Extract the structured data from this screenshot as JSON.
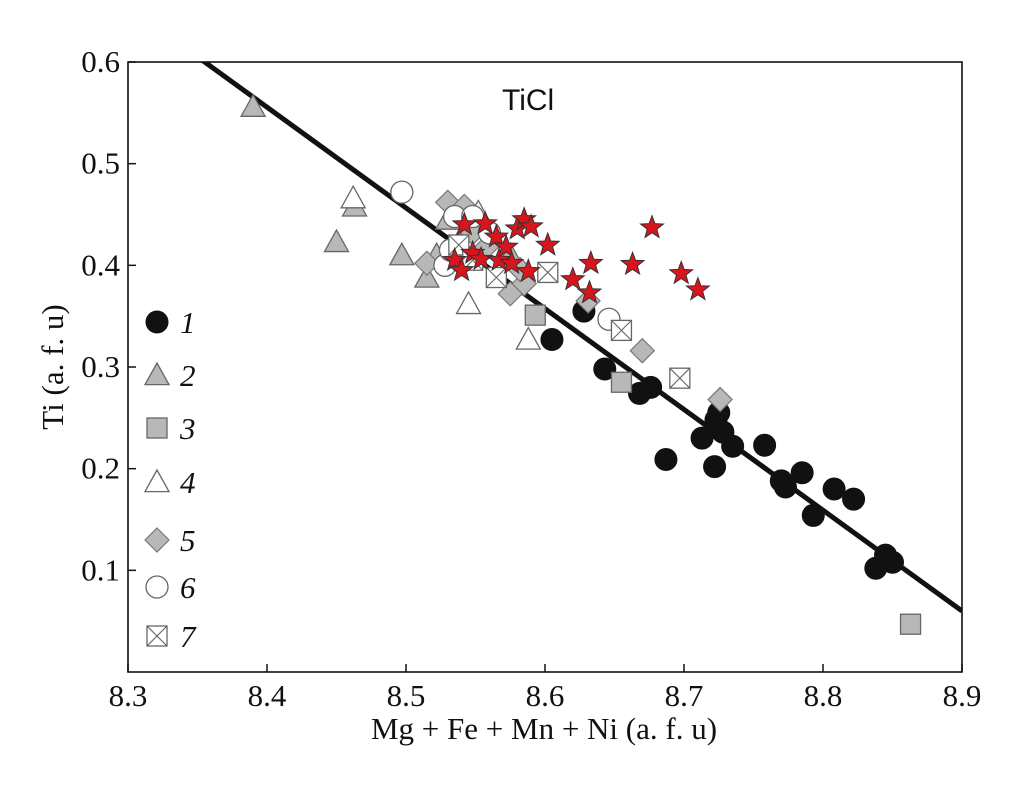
{
  "chart_data": {
    "type": "scatter",
    "annotation": "TiCl",
    "xlabel": "Mg + Fe + Mn + Ni (a. f. u)",
    "ylabel": "Ti (a. f. u)",
    "xlim": [
      8.3,
      8.9
    ],
    "ylim": [
      0.0,
      0.6
    ],
    "x_ticks": [
      8.3,
      8.4,
      8.5,
      8.6,
      8.7,
      8.8,
      8.9
    ],
    "x_tick_labels": [
      "8.3",
      "8.4",
      "8.5",
      "8.6",
      "8.7",
      "8.8",
      "8.9"
    ],
    "y_ticks": [
      0.1,
      0.2,
      0.3,
      0.4,
      0.5,
      0.6
    ],
    "y_tick_labels": [
      "0.1",
      "0.2",
      "0.3",
      "0.4",
      "0.5",
      "0.6"
    ],
    "grid": false,
    "legend_position": "left",
    "trend_line": {
      "x": [
        8.335,
        8.9
      ],
      "y": [
        0.62,
        0.06
      ]
    },
    "colors": {
      "star_fill": "#d8141c",
      "marker_gray": "#b8b8b8",
      "marker_black": "#111111"
    },
    "series": [
      {
        "name": "1",
        "marker": "filled-circle",
        "points": [
          [
            8.605,
            0.327
          ],
          [
            8.628,
            0.355
          ],
          [
            8.643,
            0.298
          ],
          [
            8.668,
            0.274
          ],
          [
            8.676,
            0.28
          ],
          [
            8.687,
            0.209
          ],
          [
            8.713,
            0.23
          ],
          [
            8.722,
            0.202
          ],
          [
            8.723,
            0.248
          ],
          [
            8.725,
            0.255
          ],
          [
            8.728,
            0.236
          ],
          [
            8.735,
            0.222
          ],
          [
            8.758,
            0.223
          ],
          [
            8.77,
            0.188
          ],
          [
            8.773,
            0.182
          ],
          [
            8.785,
            0.196
          ],
          [
            8.793,
            0.154
          ],
          [
            8.808,
            0.18
          ],
          [
            8.822,
            0.17
          ],
          [
            8.838,
            0.102
          ],
          [
            8.845,
            0.115
          ],
          [
            8.85,
            0.108
          ]
        ]
      },
      {
        "name": "2",
        "marker": "gray-triangle",
        "points": [
          [
            8.39,
            0.556
          ],
          [
            8.45,
            0.423
          ],
          [
            8.463,
            0.458
          ],
          [
            8.497,
            0.41
          ],
          [
            8.515,
            0.388
          ],
          [
            8.522,
            0.41
          ],
          [
            8.53,
            0.445
          ],
          [
            8.54,
            0.42
          ],
          [
            8.545,
            0.44
          ],
          [
            8.575,
            0.41
          ]
        ]
      },
      {
        "name": "3",
        "marker": "gray-square",
        "points": [
          [
            8.593,
            0.351
          ],
          [
            8.655,
            0.285
          ],
          [
            8.863,
            0.047
          ]
        ]
      },
      {
        "name": "4",
        "marker": "open-triangle",
        "points": [
          [
            8.462,
            0.466
          ],
          [
            8.545,
            0.362
          ],
          [
            8.588,
            0.327
          ],
          [
            8.552,
            0.452
          ],
          [
            8.54,
            0.405
          ]
        ]
      },
      {
        "name": "5",
        "marker": "gray-diamond",
        "points": [
          [
            8.515,
            0.402
          ],
          [
            8.53,
            0.462
          ],
          [
            8.542,
            0.458
          ],
          [
            8.548,
            0.432
          ],
          [
            8.575,
            0.372
          ],
          [
            8.585,
            0.382
          ],
          [
            8.631,
            0.365
          ],
          [
            8.67,
            0.316
          ],
          [
            8.726,
            0.268
          ],
          [
            8.558,
            0.418
          ],
          [
            8.582,
            0.396
          ]
        ]
      },
      {
        "name": "6",
        "marker": "open-circle",
        "points": [
          [
            8.497,
            0.472
          ],
          [
            8.528,
            0.4
          ],
          [
            8.535,
            0.448
          ],
          [
            8.548,
            0.448
          ],
          [
            8.56,
            0.432
          ],
          [
            8.646,
            0.347
          ],
          [
            8.532,
            0.415
          ]
        ]
      },
      {
        "name": "7",
        "marker": "crossed-square",
        "points": [
          [
            8.538,
            0.42
          ],
          [
            8.548,
            0.405
          ],
          [
            8.565,
            0.388
          ],
          [
            8.602,
            0.393
          ],
          [
            8.655,
            0.336
          ],
          [
            8.697,
            0.289
          ]
        ]
      },
      {
        "name": "TiCl",
        "marker": "red-star",
        "points": [
          [
            8.535,
            0.405
          ],
          [
            8.54,
            0.395
          ],
          [
            8.542,
            0.44
          ],
          [
            8.548,
            0.412
          ],
          [
            8.554,
            0.406
          ],
          [
            8.557,
            0.441
          ],
          [
            8.565,
            0.428
          ],
          [
            8.567,
            0.405
          ],
          [
            8.572,
            0.418
          ],
          [
            8.576,
            0.402
          ],
          [
            8.58,
            0.436
          ],
          [
            8.585,
            0.445
          ],
          [
            8.59,
            0.438
          ],
          [
            8.588,
            0.394
          ],
          [
            8.602,
            0.42
          ],
          [
            8.62,
            0.386
          ],
          [
            8.633,
            0.402
          ],
          [
            8.632,
            0.373
          ],
          [
            8.663,
            0.401
          ],
          [
            8.677,
            0.437
          ],
          [
            8.698,
            0.392
          ],
          [
            8.71,
            0.376
          ]
        ]
      }
    ],
    "legend": [
      {
        "label": "1",
        "marker": "filled-circle"
      },
      {
        "label": "2",
        "marker": "gray-triangle"
      },
      {
        "label": "3",
        "marker": "gray-square"
      },
      {
        "label": "4",
        "marker": "open-triangle"
      },
      {
        "label": "5",
        "marker": "gray-diamond"
      },
      {
        "label": "6",
        "marker": "open-circle"
      },
      {
        "label": "7",
        "marker": "crossed-square"
      }
    ]
  }
}
